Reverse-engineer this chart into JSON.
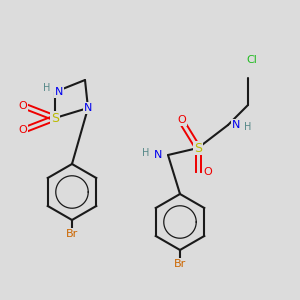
{
  "bg_color": "#dcdcdc",
  "fig_size": [
    3.0,
    3.0
  ],
  "dpi": 100,
  "colors": {
    "C": "#1a1a1a",
    "N": "#0000ee",
    "S": "#bbbb00",
    "O": "#ee0000",
    "Br": "#cc6600",
    "Cl": "#22bb22",
    "H": "#558888",
    "bond": "#1a1a1a"
  }
}
